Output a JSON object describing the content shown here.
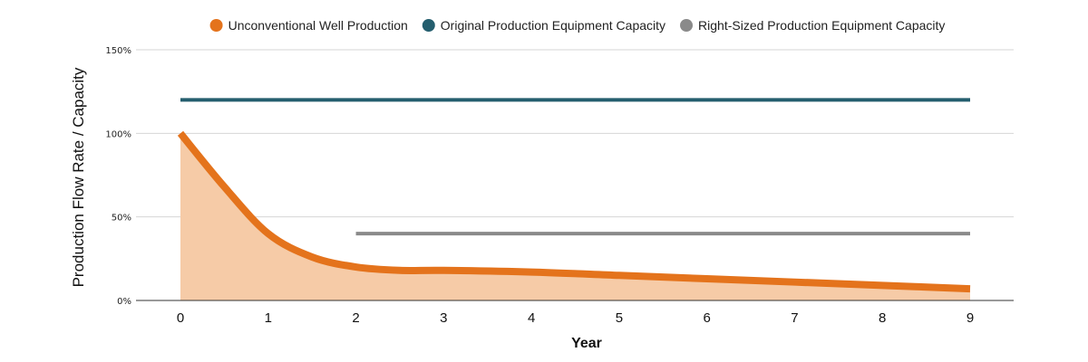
{
  "chart_data": {
    "type": "line",
    "title": "",
    "xlabel": "Year",
    "ylabel": "Production Flow Rate / Capacity",
    "xlim": [
      0,
      9
    ],
    "ylim": [
      0,
      150
    ],
    "xticks": [
      "0",
      "1",
      "2",
      "3",
      "4",
      "5",
      "6",
      "7",
      "8",
      "9"
    ],
    "yticks": [
      "0%",
      "50%",
      "100%",
      "150%"
    ],
    "grid": true,
    "legend_position": "top",
    "series": [
      {
        "name": "Unconventional Well Production",
        "color": "#e4731c",
        "fill_color": "#f6cba7",
        "area_fill": true,
        "x": [
          0,
          0.5,
          1,
          1.5,
          2,
          2.5,
          3,
          4,
          5,
          6,
          7,
          8,
          9
        ],
        "y": [
          100,
          68,
          40,
          26,
          20,
          18,
          18,
          17,
          15,
          13,
          11,
          9,
          7
        ]
      },
      {
        "name": "Original Production Equipment Capacity",
        "color": "#245e6e",
        "x": [
          0,
          9
        ],
        "y": [
          120,
          120
        ]
      },
      {
        "name": "Right-Sized Production Equipment Capacity",
        "color": "#8a8a8a",
        "x": [
          2,
          9
        ],
        "y": [
          40,
          40
        ]
      }
    ]
  }
}
